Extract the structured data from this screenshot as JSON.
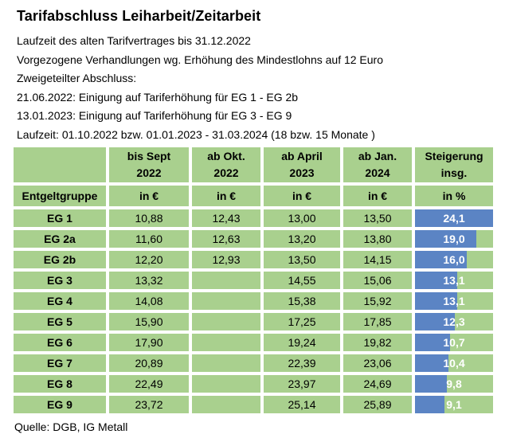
{
  "title": "Tarifabschluss Leiharbeit/Zeitarbeit",
  "intro_lines": [
    "Laufzeit des alten Tarifvertrages bis 31.12.2022",
    "Vorgezogene Verhandlungen wg. Erhöhung des Mindestlohns auf 12 Euro",
    "Zweigeteilter Abschluss:",
    "21.06.2022: Einigung auf Tariferhöhung für EG 1 - EG 2b",
    "13.01.2023: Einigung auf Tariferhöhung für EG 3 - EG 9",
    "Laufzeit: 01.10.2022 bzw. 01.01.2023 - 31.03.2024 (18 bzw. 15 Monate )"
  ],
  "table": {
    "header_top": [
      "",
      "bis Sept\n2022",
      "ab Okt.\n2022",
      "ab April\n2023",
      "ab Jan.\n2024",
      "Steigerung\ninsg."
    ],
    "header_units": [
      "Entgeltgruppe",
      "in €",
      "in €",
      "in €",
      "in €",
      "in %"
    ],
    "bar_max": 24.1,
    "rows": [
      {
        "group": "EG 1",
        "values": [
          "10,88",
          "12,43",
          "13,00",
          "13,50"
        ],
        "increase": "24,1",
        "increase_value": 24.1
      },
      {
        "group": "EG 2a",
        "values": [
          "11,60",
          "12,63",
          "13,20",
          "13,80"
        ],
        "increase": "19,0",
        "increase_value": 19.0
      },
      {
        "group": "EG 2b",
        "values": [
          "12,20",
          "12,93",
          "13,50",
          "14,15"
        ],
        "increase": "16,0",
        "increase_value": 16.0
      },
      {
        "group": "EG 3",
        "values": [
          "13,32",
          "",
          "14,55",
          "15,06"
        ],
        "increase": "13,1",
        "increase_value": 13.1
      },
      {
        "group": "EG 4",
        "values": [
          "14,08",
          "",
          "15,38",
          "15,92"
        ],
        "increase": "13,1",
        "increase_value": 13.1
      },
      {
        "group": "EG 5",
        "values": [
          "15,90",
          "",
          "17,25",
          "17,85"
        ],
        "increase": "12,3",
        "increase_value": 12.3
      },
      {
        "group": "EG 6",
        "values": [
          "17,90",
          "",
          "19,24",
          "19,82"
        ],
        "increase": "10,7",
        "increase_value": 10.7
      },
      {
        "group": "EG 7",
        "values": [
          "20,89",
          "",
          "22,39",
          "23,06"
        ],
        "increase": "10,4",
        "increase_value": 10.4
      },
      {
        "group": "EG 8",
        "values": [
          "22,49",
          "",
          "23,97",
          "24,69"
        ],
        "increase": "9,8",
        "increase_value": 9.8
      },
      {
        "group": "EG 9",
        "values": [
          "23,72",
          "",
          "25,14",
          "25,89"
        ],
        "increase": "9,1",
        "increase_value": 9.1
      }
    ]
  },
  "source": "Quelle: DGB, IG Metall",
  "colors": {
    "cell_green": "#A9D08E",
    "bar_blue": "#5B84C4",
    "bar_text": "#FFFFFF",
    "text": "#000000",
    "background": "#FFFFFF"
  },
  "chart_data": {
    "type": "table",
    "title": "Tarifabschluss Leiharbeit/Zeitarbeit",
    "columns": [
      "Entgeltgruppe",
      "bis Sept 2022 in €",
      "ab Okt. 2022 in €",
      "ab April 2023 in €",
      "ab Jan. 2024 in €",
      "Steigerung insg. in %"
    ],
    "rows": [
      [
        "EG 1",
        10.88,
        12.43,
        13.0,
        13.5,
        24.1
      ],
      [
        "EG 2a",
        11.6,
        12.63,
        13.2,
        13.8,
        19.0
      ],
      [
        "EG 2b",
        12.2,
        12.93,
        13.5,
        14.15,
        16.0
      ],
      [
        "EG 3",
        13.32,
        null,
        14.55,
        15.06,
        13.1
      ],
      [
        "EG 4",
        14.08,
        null,
        15.38,
        15.92,
        13.1
      ],
      [
        "EG 5",
        15.9,
        null,
        17.25,
        17.85,
        12.3
      ],
      [
        "EG 6",
        17.9,
        null,
        19.24,
        19.82,
        10.7
      ],
      [
        "EG 7",
        20.89,
        null,
        22.39,
        23.06,
        10.4
      ],
      [
        "EG 8",
        22.49,
        null,
        23.97,
        24.69,
        9.8
      ],
      [
        "EG 9",
        23.72,
        null,
        25.14,
        25.89,
        9.1
      ]
    ],
    "bar_column": "Steigerung insg. in %",
    "bar_scale": {
      "min": 0,
      "max": 24.1
    },
    "source": "Quelle: DGB, IG Metall"
  }
}
